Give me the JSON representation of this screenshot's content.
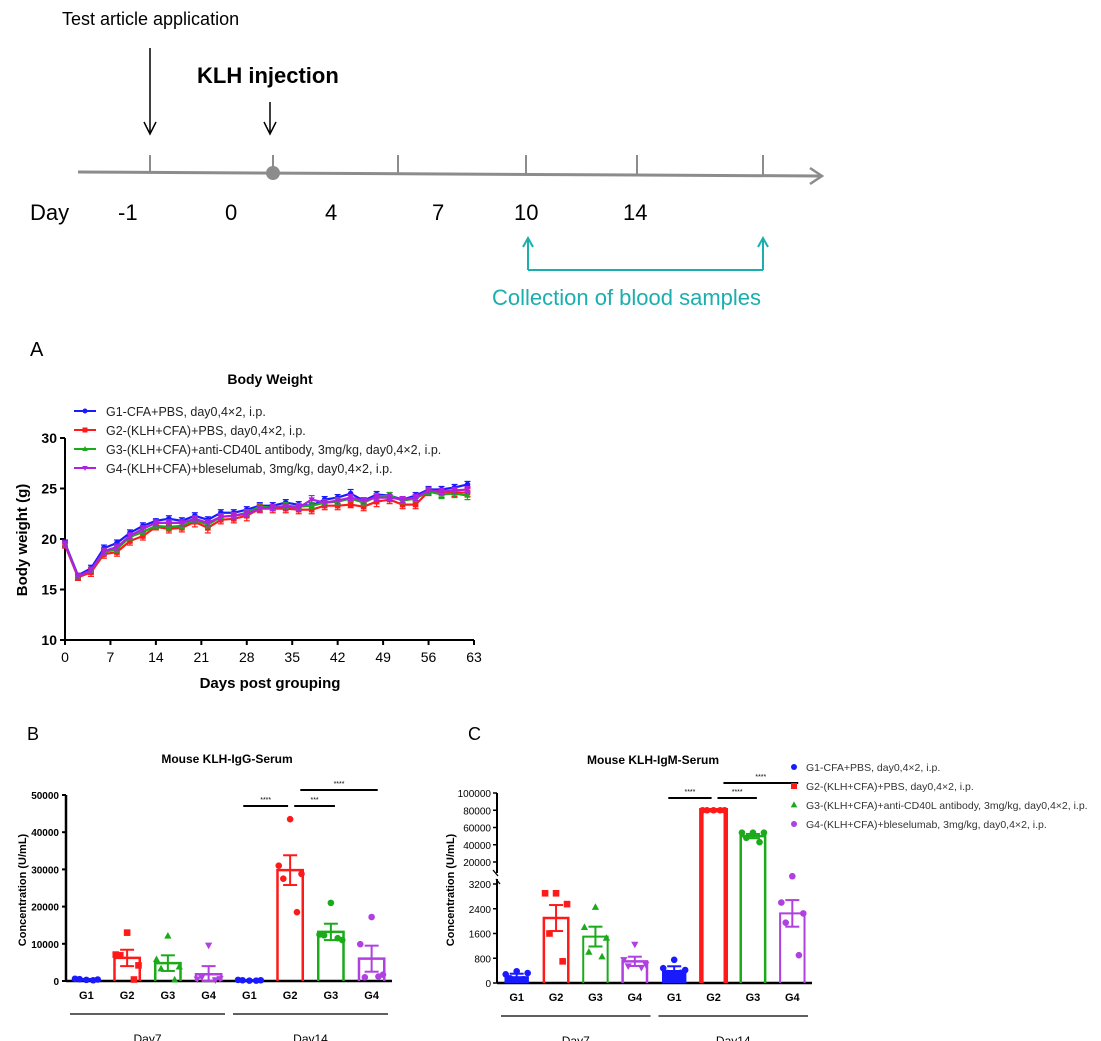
{
  "timeline": {
    "test_article_label": "Test article application",
    "klh_label": "KLH injection",
    "day_label": "Day",
    "day_ticks": [
      "-1",
      "0",
      "4",
      "7",
      "10",
      "14"
    ],
    "collection_label": "Collection of blood samples",
    "colors": {
      "axis": "#8c8c8c",
      "collection": "#1aaeae"
    }
  },
  "panel_labels": {
    "a": "A",
    "b": "B",
    "c": "C"
  },
  "chart_data": [
    {
      "id": "A",
      "type": "line",
      "title": "Body Weight",
      "xlabel": "Days post grouping",
      "ylabel": "Body weight (g)",
      "xlim": [
        0,
        63
      ],
      "ylim": [
        10,
        30
      ],
      "xticks": [
        0,
        7,
        14,
        21,
        28,
        35,
        42,
        49,
        56,
        63
      ],
      "yticks": [
        10,
        15,
        20,
        25,
        30
      ],
      "legend_position": "top-left",
      "x": [
        0,
        2,
        4,
        6,
        8,
        10,
        12,
        14,
        16,
        18,
        20,
        22,
        24,
        26,
        28,
        30,
        32,
        34,
        36,
        38,
        40,
        42,
        44,
        46,
        48,
        50,
        52,
        54,
        56,
        58,
        60,
        62
      ],
      "series": [
        {
          "name": "G1-CFA+PBS, day0,4×2, i.p.",
          "color": "#1a1aff",
          "marker": "circle",
          "values": [
            19.6,
            16.4,
            17.1,
            19.1,
            19.6,
            20.6,
            21.3,
            21.8,
            22.0,
            21.8,
            22.3,
            21.9,
            22.6,
            22.6,
            22.9,
            23.3,
            23.3,
            23.6,
            23.4,
            23.3,
            23.9,
            24.1,
            24.5,
            23.8,
            24.4,
            24.3,
            23.9,
            24.3,
            24.9,
            24.9,
            25.1,
            25.4
          ],
          "err": [
            0.3,
            0.2,
            0.3,
            0.3,
            0.3,
            0.3,
            0.3,
            0.2,
            0.3,
            0.3,
            0.3,
            0.3,
            0.3,
            0.3,
            0.3,
            0.3,
            0.3,
            0.3,
            0.3,
            0.3,
            0.3,
            0.3,
            0.4,
            0.3,
            0.3,
            0.3,
            0.3,
            0.3,
            0.3,
            0.3,
            0.3,
            0.3
          ]
        },
        {
          "name": "G2-(KLH+CFA)+PBS, day0,4×2, i.p.",
          "color": "#ff1a1a",
          "marker": "square",
          "values": [
            19.4,
            16.2,
            16.7,
            18.5,
            18.7,
            19.8,
            20.3,
            21.2,
            21.0,
            21.1,
            21.7,
            21.1,
            21.9,
            22.0,
            22.3,
            23.0,
            23.0,
            23.0,
            22.9,
            22.9,
            23.3,
            23.3,
            23.4,
            23.2,
            23.7,
            23.9,
            23.4,
            23.4,
            24.7,
            24.5,
            24.6,
            24.6
          ],
          "err": [
            0.3,
            0.3,
            0.4,
            0.4,
            0.4,
            0.4,
            0.4,
            0.3,
            0.4,
            0.4,
            0.5,
            0.5,
            0.4,
            0.4,
            0.5,
            0.4,
            0.4,
            0.4,
            0.4,
            0.4,
            0.4,
            0.4,
            0.3,
            0.4,
            0.5,
            0.4,
            0.4,
            0.4,
            0.4,
            0.4,
            0.4,
            0.4
          ]
        },
        {
          "name": "G3-(KLH+CFA)+anti-CD40L antibody, 3mg/kg, day0,4×2, i.p.",
          "color": "#1aaa1a",
          "marker": "triangle-up",
          "values": [
            19.5,
            16.3,
            16.9,
            18.7,
            19.0,
            20.2,
            20.7,
            21.3,
            21.2,
            21.3,
            21.9,
            21.4,
            22.2,
            22.3,
            22.6,
            23.2,
            23.1,
            23.3,
            23.2,
            23.3,
            23.6,
            23.7,
            24.0,
            23.6,
            24.2,
            24.3,
            23.8,
            24.0,
            24.7,
            24.4,
            24.5,
            24.3
          ],
          "err": [
            0.3,
            0.3,
            0.3,
            0.3,
            0.3,
            0.3,
            0.3,
            0.3,
            0.3,
            0.3,
            0.3,
            0.3,
            0.3,
            0.3,
            0.3,
            0.3,
            0.3,
            0.3,
            0.3,
            0.3,
            0.3,
            0.3,
            0.3,
            0.3,
            0.3,
            0.3,
            0.3,
            0.3,
            0.3,
            0.4,
            0.4,
            0.4
          ]
        },
        {
          "name": "G4-(KLH+CFA)+bleselumab, 3mg/kg, day0,4×2, i.p.",
          "color": "#b020e0",
          "marker": "triangle-down",
          "values": [
            19.5,
            16.3,
            16.9,
            18.8,
            19.2,
            20.3,
            21.0,
            21.6,
            21.6,
            21.6,
            22.0,
            21.6,
            22.2,
            22.3,
            22.5,
            23.0,
            23.1,
            23.2,
            23.1,
            23.9,
            23.6,
            23.8,
            24.1,
            23.8,
            24.1,
            24.1,
            23.9,
            24.1,
            24.8,
            24.7,
            24.8,
            24.9
          ],
          "err": [
            0.3,
            0.3,
            0.3,
            0.3,
            0.3,
            0.3,
            0.3,
            0.3,
            0.3,
            0.3,
            0.3,
            0.3,
            0.3,
            0.3,
            0.3,
            0.3,
            0.3,
            0.3,
            0.3,
            0.4,
            0.3,
            0.3,
            0.3,
            0.3,
            0.3,
            0.3,
            0.3,
            0.3,
            0.3,
            0.3,
            0.3,
            0.3
          ]
        }
      ]
    },
    {
      "id": "B",
      "type": "bar",
      "title": "Mouse KLH-IgG-Serum",
      "ylabel": "Concentration (U/mL)",
      "ylim": [
        0,
        50000
      ],
      "yticks": [
        0,
        10000,
        20000,
        30000,
        40000,
        50000
      ],
      "categories": [
        "G1",
        "G2",
        "G3",
        "G4",
        "G1",
        "G2",
        "G3",
        "G4"
      ],
      "groups": [
        {
          "label": "Day7",
          "span": [
            0,
            3
          ]
        },
        {
          "label": "Day14",
          "span": [
            4,
            7
          ]
        }
      ],
      "colors": [
        "#1a1aff",
        "#ff1a1a",
        "#1aaa1a",
        "#b040e0",
        "#1a1aff",
        "#ff1a1a",
        "#1aaa1a",
        "#b040e0"
      ],
      "fill": [
        "filled",
        "hollow",
        "hollow",
        "hollow",
        "filled",
        "hollow",
        "hollow",
        "hollow"
      ],
      "markers": [
        "circle",
        "square",
        "triangle-up",
        "triangle-down",
        "circle",
        "circle",
        "circle",
        "circle"
      ],
      "values": [
        400,
        6200,
        4800,
        1800,
        200,
        29800,
        13200,
        6000
      ],
      "err": [
        150,
        2200,
        2100,
        2200,
        80,
        4000,
        2200,
        3500
      ],
      "points": [
        [
          300,
          600,
          400,
          500,
          200
        ],
        [
          13000,
          7100,
          4200,
          6900,
          400
        ],
        [
          12100,
          5800,
          3800,
          3300,
          300
        ],
        [
          9600,
          500,
          600,
          1000,
          300
        ],
        [
          100,
          300,
          200,
          200,
          100
        ],
        [
          43500,
          31000,
          28800,
          27500,
          18500
        ],
        [
          21000,
          12500,
          11000,
          12300,
          11500
        ],
        [
          17200,
          9900,
          1700,
          1000,
          1200
        ]
      ],
      "significance": [
        {
          "from": 4,
          "to": 5,
          "label": "****",
          "level": 1
        },
        {
          "from": 5,
          "to": 6,
          "label": "***",
          "level": 1
        },
        {
          "from": 5,
          "to": 7,
          "label": "****",
          "level": 2
        }
      ]
    },
    {
      "id": "C",
      "type": "bar",
      "title": "Mouse KLH-IgM-Serum",
      "ylabel": "Concentration (U/mL)",
      "ylim_lower": [
        0,
        3200
      ],
      "ylim_upper": [
        20000,
        100000
      ],
      "yticks_lower": [
        0,
        800,
        1600,
        2400,
        3200
      ],
      "yticks_upper": [
        20000,
        40000,
        60000,
        80000,
        100000
      ],
      "axis_break": true,
      "categories": [
        "G1",
        "G2",
        "G3",
        "G4",
        "G1",
        "G2",
        "G3",
        "G4"
      ],
      "groups": [
        {
          "label": "Day7",
          "span": [
            0,
            3
          ]
        },
        {
          "label": "Day14",
          "span": [
            4,
            7
          ]
        }
      ],
      "colors": [
        "#1a1aff",
        "#ff1a1a",
        "#1aaa1a",
        "#b040e0",
        "#1a1aff",
        "#ff1a1a",
        "#1aaa1a",
        "#b040e0"
      ],
      "fill": [
        "filled",
        "hollow",
        "hollow",
        "hollow",
        "filled",
        "hollow",
        "hollow",
        "hollow"
      ],
      "markers": [
        "circle",
        "square",
        "triangle-up",
        "triangle-down",
        "circle",
        "circle",
        "circle",
        "circle"
      ],
      "values": [
        220,
        2100,
        1500,
        700,
        420,
        80000,
        50000,
        2250
      ],
      "err": [
        80,
        420,
        320,
        150,
        120,
        500,
        2500,
        430
      ],
      "points": [
        [
          380,
          280,
          320,
          150,
          120
        ],
        [
          2900,
          2900,
          2550,
          1600,
          700
        ],
        [
          2450,
          1800,
          1450,
          1000,
          850
        ],
        [
          1250,
          750,
          600,
          550,
          500
        ],
        [
          750,
          480,
          420,
          320,
          330
        ],
        [
          80000,
          80000,
          80000,
          80000,
          80000
        ],
        [
          54000,
          54000,
          54000,
          48000,
          43000
        ],
        [
          3500,
          2600,
          2250,
          1950,
          900
        ]
      ],
      "significance": [
        {
          "from": 4,
          "to": 5,
          "label": "****",
          "level": 1
        },
        {
          "from": 5,
          "to": 6,
          "label": "****",
          "level": 1
        },
        {
          "from": 5,
          "to": 7,
          "label": "****",
          "level": 2
        }
      ],
      "legend_position": "right",
      "legend": [
        {
          "label": "G1-CFA+PBS, day0,4×2, i.p.",
          "color": "#1a1aff",
          "marker": "circle"
        },
        {
          "label": "G2-(KLH+CFA)+PBS, day0,4×2, i.p.",
          "color": "#ff1a1a",
          "marker": "square"
        },
        {
          "label": "G3-(KLH+CFA)+anti-CD40L antibody, 3mg/kg, day0,4×2, i.p.",
          "color": "#1aaa1a",
          "marker": "triangle-up"
        },
        {
          "label": "G4-(KLH+CFA)+bleselumab, 3mg/kg, day0,4×2, i.p.",
          "color": "#b040e0",
          "marker": "circle"
        }
      ]
    }
  ]
}
